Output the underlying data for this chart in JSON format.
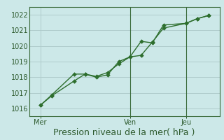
{
  "xlabel": "Pression niveau de la mer( hPa )",
  "bg_color": "#cce8e8",
  "grid_color": "#b0cccc",
  "line_color": "#2d6e2d",
  "ylim": [
    1015.5,
    1022.5
  ],
  "yticks": [
    1016,
    1017,
    1018,
    1019,
    1020,
    1021,
    1022
  ],
  "day_labels": [
    "Mer",
    "Ven",
    "Jeu"
  ],
  "day_positions": [
    0,
    8,
    13
  ],
  "series1_x": [
    0,
    1,
    3,
    4,
    5,
    6,
    7,
    8,
    9,
    10,
    11,
    13,
    14,
    15
  ],
  "series1_y": [
    1016.2,
    1016.8,
    1017.75,
    1018.2,
    1018.05,
    1018.3,
    1018.85,
    1019.3,
    1019.4,
    1020.25,
    1021.15,
    1021.45,
    1021.75,
    1021.95
  ],
  "series2_x": [
    0,
    1,
    3,
    4,
    5,
    6,
    7,
    8,
    9,
    10,
    11,
    13,
    14,
    15
  ],
  "series2_y": [
    1016.2,
    1016.85,
    1018.2,
    1018.2,
    1018.0,
    1018.15,
    1019.0,
    1019.3,
    1020.3,
    1020.2,
    1021.35,
    1021.45,
    1021.75,
    1021.95
  ],
  "xlim": [
    -0.5,
    15.5
  ],
  "vline_positions": [
    8,
    13
  ],
  "xlabel_fontsize": 9,
  "ytick_fontsize": 7,
  "xtick_fontsize": 7
}
